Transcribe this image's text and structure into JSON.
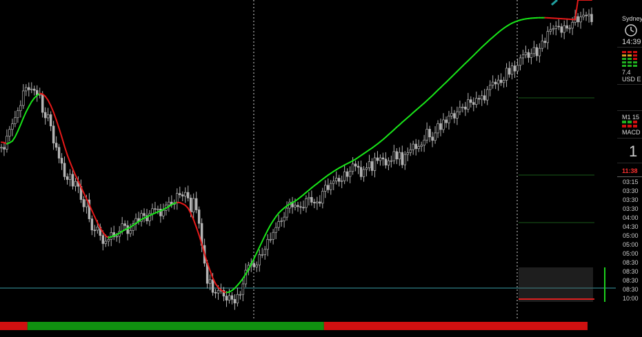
{
  "panel": {
    "city": "Sydney",
    "clock": "14:39",
    "meter_value": "7.4",
    "currency": "USD",
    "currency_suffix": "E",
    "timeframe": "M1",
    "timeframe_count": "15",
    "indicator": "MACD",
    "big_digit": "1",
    "countdown": "11:38"
  },
  "times": [
    "03:15",
    "03:30",
    "03:30",
    "03:30",
    "04:00",
    "04:30",
    "05:00",
    "05:00",
    "05:00",
    "08:30",
    "08:30",
    "08:30",
    "08:30",
    "10:00"
  ],
  "colors": {
    "background": "#000000",
    "candle": "#b4b4b4",
    "ma_up": "#19e619",
    "ma_down": "#e61919",
    "bar_red": "#d01010",
    "bar_green": "#109010",
    "guide": "#3aa0a8",
    "box": "#3a3a3a",
    "level_green": "#1a5a1a"
  },
  "chart_data": {
    "type": "line",
    "x": [
      "1",
      "2",
      "3",
      "4",
      "5",
      "6",
      "7",
      "8",
      "9",
      "10",
      "11",
      "12",
      "13",
      "14",
      "15",
      "16",
      "17",
      "18",
      "19",
      "20",
      "21",
      "22",
      "23",
      "24",
      "25",
      "26",
      "27",
      "28",
      "29",
      "30",
      "31",
      "32",
      "33",
      "34",
      "35",
      "36",
      "37",
      "38",
      "39",
      "40",
      "41",
      "42",
      "43",
      "44",
      "45",
      "46",
      "47",
      "48",
      "49",
      "50",
      "51",
      "52",
      "53",
      "54",
      "55",
      "56",
      "57",
      "58",
      "59",
      "60",
      "61",
      "62",
      "63",
      "64",
      "65",
      "66",
      "67",
      "68",
      "69",
      "70",
      "71",
      "72",
      "73",
      "74",
      "75",
      "76",
      "77",
      "78",
      "79",
      "80",
      "81",
      "82",
      "83",
      "84",
      "85",
      "86",
      "87",
      "88",
      "89",
      "90",
      "91",
      "92",
      "93",
      "94",
      "95",
      "96",
      "97",
      "98",
      "99",
      "100",
      "101",
      "102",
      "103",
      "104",
      "105",
      "106",
      "107",
      "108",
      "109",
      "110",
      "111",
      "112",
      "113",
      "114",
      "115",
      "116",
      "117",
      "118",
      "119",
      "120",
      "121",
      "122",
      "123",
      "124",
      "125",
      "126",
      "127",
      "128",
      "129",
      "130",
      "131",
      "132",
      "133",
      "134",
      "135",
      "136",
      "137",
      "138",
      "139",
      "140",
      "141",
      "142",
      "143",
      "144",
      "145",
      "146",
      "147",
      "148",
      "149",
      "150",
      "151",
      "152",
      "153",
      "154",
      "155",
      "156",
      "157",
      "158",
      "159",
      "160",
      "161",
      "162",
      "163",
      "164",
      "165",
      "166",
      "167",
      "168",
      "169",
      "170",
      "171",
      "172",
      "173",
      "174",
      "175",
      "176",
      "177",
      "178",
      "179",
      "180",
      "181",
      "182",
      "183",
      "184",
      "185",
      "186",
      "187",
      "188",
      "189",
      "190",
      "191",
      "192",
      "193",
      "194",
      "195",
      "196",
      "197",
      "198",
      "199",
      "200",
      "201",
      "202",
      "203",
      "204",
      "205",
      "206",
      "207",
      "208",
      "209",
      "210",
      "211",
      "212",
      "213",
      "214"
    ],
    "price": [
      122.0,
      120.9,
      128.6,
      132.6,
      135.9,
      139.5,
      143.6,
      146.7,
      155.3,
      157.3,
      156.0,
      156.4,
      155.6,
      152.9,
      153.2,
      142.6,
      139.4,
      141.3,
      134.6,
      124.5,
      122.0,
      115.6,
      112.6,
      104.7,
      103.0,
      106.1,
      99.1,
      101.9,
      99.0,
      91.2,
      86.9,
      91.0,
      79.8,
      73.2,
      73.1,
      75.0,
      70.0,
      65.2,
      66.6,
      67.7,
      71.7,
      69.3,
      69.5,
      72.5,
      76.9,
      75.8,
      71.1,
      72.9,
      76.9,
      80.0,
      78.3,
      83.0,
      81.7,
      78.6,
      82.9,
      85.8,
      85.5,
      85.6,
      81.5,
      84.8,
      88.0,
      89.7,
      88.3,
      89.2,
      94.8,
      94.0,
      93.2,
      95.4,
      92.1,
      83.8,
      91.8,
      85.1,
      77.1,
      64.1,
      53.6,
      41.7,
      43.9,
      36.4,
      36.0,
      37.6,
      37.6,
      34.2,
      31.8,
      34.5,
      32.3,
      30.1,
      35.2,
      35.2,
      41.4,
      49.5,
      52.4,
      53.5,
      51.4,
      52.6,
      58.7,
      58.7,
      61.8,
      67.7,
      67.7,
      71.8,
      74.7,
      78.2,
      78.6,
      80.8,
      86.1,
      89.7,
      86.8,
      87.8,
      87.0,
      86.6,
      86.5,
      91.7,
      92.5,
      89.6,
      89.1,
      89.8,
      89.0,
      96.1,
      99.6,
      97.0,
      100.7,
      102.1,
      103.8,
      101.9,
      102.3,
      107.6,
      104.8,
      107.8,
      112.2,
      110.9,
      110.2,
      104.7,
      108.9,
      109.9,
      113.6,
      108.3,
      115.8,
      114.2,
      115.8,
      115.1,
      111.5,
      114.1,
      114.1,
      119.5,
      115.1,
      119.0,
      111.7,
      117.8,
      118.9,
      120.6,
      123.9,
      121.2,
      122.5,
      123.3,
      126.3,
      132.7,
      128.1,
      126.1,
      130.5,
      136.0,
      132.5,
      138.2,
      136.5,
      140.5,
      142.0,
      139.2,
      143.0,
      145.6,
      145.8,
      144.5,
      150.1,
      148.5,
      147.3,
      150.9,
      150.4,
      152.5,
      149.9,
      156.1,
      158.6,
      160.5,
      159.4,
      161.7,
      160.2,
      161.6,
      168.7,
      165.1,
      170.1,
      167.0,
      170.4,
      174.8,
      176.6,
      178.0,
      175.0,
      177.3,
      180.9,
      176.0,
      180.4,
      184.7,
      183.8,
      190.4,
      191.5,
      192.1,
      193.5,
      193.2,
      189.8,
      193.8,
      192.3,
      192.3,
      195.8,
      199.2,
      196.0,
      199.0,
      200.0,
      199.6,
      200.5,
      196.1
    ],
    "moving_average": [
      125.0,
      124.8,
      124.1,
      124.7,
      125.7,
      128.2,
      131.6,
      135.3,
      139.3,
      142.9,
      146.0,
      148.9,
      151.1,
      152.7,
      153.8,
      153.5,
      152.1,
      149.8,
      146.6,
      142.7,
      138.2,
      133.3,
      128.1,
      122.6,
      117.6,
      113.3,
      109.3,
      105.5,
      102.0,
      98.6,
      95.1,
      91.7,
      88.2,
      84.6,
      81.0,
      77.5,
      74.4,
      71.9,
      69.7,
      68.7,
      69.2,
      69.9,
      70.5,
      71.4,
      72.4,
      73.4,
      74.1,
      74.9,
      76.0,
      77.2,
      78.2,
      79.4,
      80.3,
      80.9,
      81.8,
      82.5,
      83.2,
      83.9,
      84.5,
      85.3,
      86.2,
      87.1,
      88.1,
      89.0,
      89.5,
      89.4,
      88.7,
      87.8,
      86.1,
      83.0,
      79.3,
      74.9,
      70.2,
      64.9,
      59.1,
      53.8,
      49.3,
      44.9,
      41.5,
      39.3,
      37.9,
      36.7,
      36.3,
      36.6,
      37.5,
      38.9,
      40.6,
      42.5,
      44.7,
      47.2,
      50.0,
      53.1,
      56.3,
      59.7,
      63.1,
      66.5,
      69.9,
      73.1,
      76.1,
      78.7,
      81.1,
      83.2,
      84.8,
      86.2,
      87.5,
      88.5,
      89.4,
      90.3,
      91.4,
      92.7,
      94.0,
      95.4,
      96.7,
      98.1,
      99.4,
      100.6,
      101.9,
      103.2,
      104.4,
      105.6,
      106.7,
      107.8,
      108.8,
      109.8,
      110.7,
      111.6,
      112.4,
      113.2,
      114.1,
      115.0,
      116.1,
      117.2,
      118.3,
      119.4,
      120.5,
      121.6,
      122.8,
      124.0,
      125.3,
      126.6,
      128.0,
      129.5,
      130.9,
      132.4,
      133.9,
      135.3,
      136.8,
      138.2,
      139.6,
      141.0,
      142.5,
      143.9,
      145.3,
      146.7,
      148.1,
      149.6,
      151.1,
      152.6,
      154.2,
      155.8,
      157.3,
      158.9,
      160.4,
      162.0,
      163.6,
      165.2,
      166.8,
      168.4,
      170.0,
      171.6,
      173.1,
      174.7,
      176.3,
      177.9,
      179.5,
      181.1,
      182.6,
      184.1,
      185.6,
      187.0,
      188.4,
      189.8,
      191.1,
      192.3,
      193.4,
      194.4,
      195.3,
      196.0,
      196.6,
      197.1,
      197.5,
      197.8,
      198.0,
      198.2,
      198.3,
      198.4,
      198.5,
      198.5,
      198.5,
      198.4,
      198.3,
      198.2,
      198.1,
      198.0,
      197.9,
      197.8,
      197.7,
      197.6,
      197.5,
      197.4
    ],
    "trend_bar": [
      {
        "from": 1,
        "to": 10,
        "state": "down"
      },
      {
        "from": 11,
        "to": 118,
        "state": "up"
      },
      {
        "from": 119,
        "to": 214,
        "state": "down"
      }
    ],
    "xlabel": "",
    "ylabel": "",
    "grid": false,
    "legend": "none"
  }
}
